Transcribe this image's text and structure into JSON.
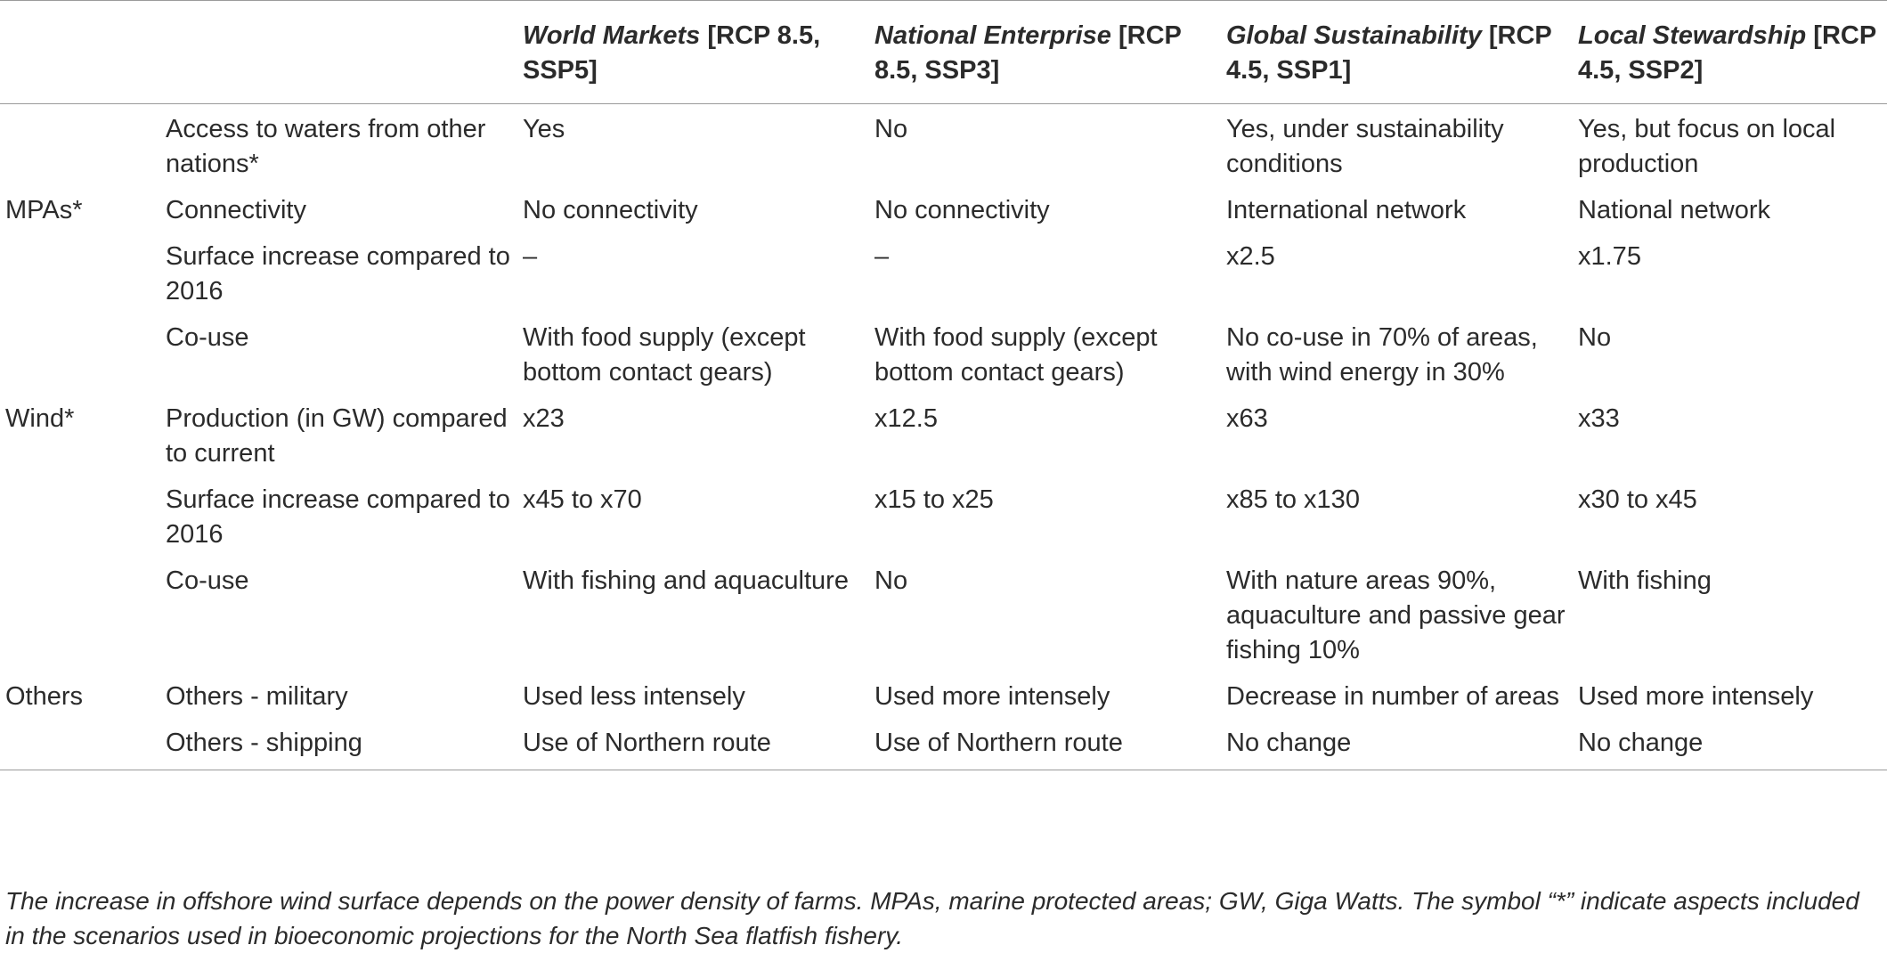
{
  "table": {
    "headers": [
      {
        "em": "",
        "rest": ""
      },
      {
        "em": "",
        "rest": ""
      },
      {
        "em": "World Markets",
        "rest": " [RCP 8.5, SSP5]"
      },
      {
        "em": "National Enterprise",
        "rest": " [RCP 8.5, SSP3]"
      },
      {
        "em": "Global Sustainability",
        "rest": " [RCP 4.5, SSP1]"
      },
      {
        "em": "Local Stewardship",
        "rest": " [RCP 4.5, SSP2]"
      }
    ],
    "rows": [
      [
        "",
        "Access to waters from other nations*",
        "Yes",
        "No",
        "Yes, under sustainability conditions",
        "Yes, but focus on local production"
      ],
      [
        "MPAs*",
        "Connectivity",
        "No connectivity",
        "No connectivity",
        "International network",
        "National network"
      ],
      [
        "",
        "Surface increase compared to 2016",
        "–",
        "–",
        "x2.5",
        "x1.75"
      ],
      [
        "",
        "Co-use",
        "With food supply (except bottom contact gears)",
        "With food supply (except bottom contact gears)",
        "No co-use in 70% of areas, with wind energy in 30%",
        "No"
      ],
      [
        "Wind*",
        "Production (in GW) compared to current",
        "x23",
        "x12.5",
        "x63",
        "x33"
      ],
      [
        "",
        "Surface increase compared to 2016",
        "x45 to x70",
        "x15 to x25",
        "x85 to x130",
        "x30 to x45"
      ],
      [
        "",
        "Co-use",
        "With fishing and aquaculture",
        "No",
        "With nature areas 90%, aquaculture and passive gear fishing 10%",
        "With fishing"
      ],
      [
        "Others",
        "Others - military",
        "Used less intensely",
        "Used more intensely",
        "Decrease in number of areas",
        "Used more intensely"
      ],
      [
        "",
        "Others - shipping",
        "Use of Northern route",
        "Use of Northern route",
        "No change",
        "No change"
      ]
    ]
  },
  "footnote": "The increase in offshore wind surface depends on the power density of farms. MPAs, marine protected areas; GW, Giga Watts. The symbol “*” indicate aspects included in the scenarios used in bioeconomic projections for the North Sea flatfish fishery."
}
